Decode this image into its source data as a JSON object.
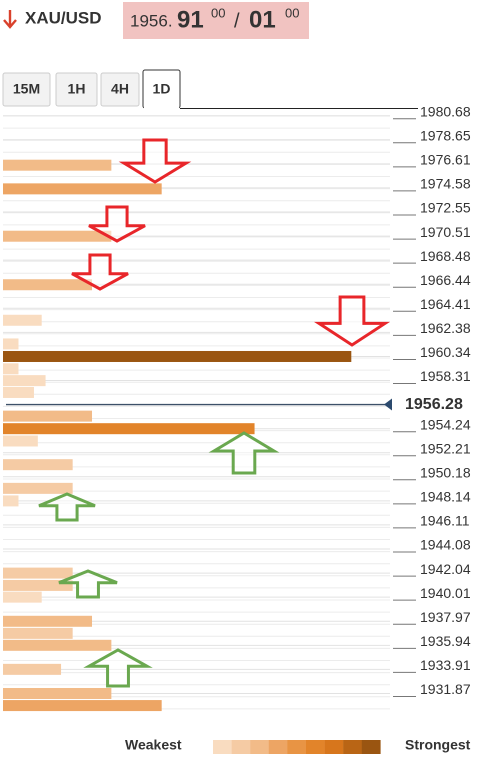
{
  "header": {
    "symbol": "XAU/USD",
    "bid_main": "1956.",
    "bid_big": "91",
    "bid_sup": "00",
    "separator": "/",
    "ask_big": "01",
    "ask_sup": "00"
  },
  "tabs": [
    "15M",
    "1H",
    "4H",
    "1D"
  ],
  "active_tab": 3,
  "chart_data": {
    "type": "confluence",
    "ylim": [
      1929.8,
      1981.5
    ],
    "yticks": [
      1980.68,
      1978.65,
      1976.61,
      1974.58,
      1972.55,
      1970.51,
      1968.48,
      1966.44,
      1964.41,
      1962.38,
      1960.34,
      1958.31,
      1954.24,
      1952.21,
      1950.18,
      1948.14,
      1946.11,
      1944.08,
      1942.04,
      1940.01,
      1937.97,
      1935.94,
      1933.91,
      1931.87
    ],
    "current_price": 1956.28,
    "bars": [
      {
        "price": 1976.5,
        "strength": 28
      },
      {
        "price": 1974.5,
        "strength": 41
      },
      {
        "price": 1970.5,
        "strength": 28
      },
      {
        "price": 1966.4,
        "strength": 23
      },
      {
        "price": 1963.4,
        "strength": 10
      },
      {
        "price": 1961.4,
        "strength": 4
      },
      {
        "price": 1960.34,
        "strength": 90
      },
      {
        "price": 1959.3,
        "strength": 4
      },
      {
        "price": 1958.3,
        "strength": 11
      },
      {
        "price": 1957.3,
        "strength": 8
      },
      {
        "price": 1955.3,
        "strength": 23
      },
      {
        "price": 1954.24,
        "strength": 65
      },
      {
        "price": 1953.2,
        "strength": 9
      },
      {
        "price": 1951.2,
        "strength": 18
      },
      {
        "price": 1949.2,
        "strength": 18
      },
      {
        "price": 1948.14,
        "strength": 4
      },
      {
        "price": 1942.04,
        "strength": 18
      },
      {
        "price": 1941.0,
        "strength": 18
      },
      {
        "price": 1940.01,
        "strength": 10
      },
      {
        "price": 1937.97,
        "strength": 23
      },
      {
        "price": 1936.95,
        "strength": 18
      },
      {
        "price": 1935.94,
        "strength": 28
      },
      {
        "price": 1933.91,
        "strength": 15
      },
      {
        "price": 1931.87,
        "strength": 28
      },
      {
        "price": 1930.85,
        "strength": 41
      }
    ],
    "xlim": [
      0,
      100
    ],
    "legend": {
      "weakest": "Weakest",
      "strongest": "Strongest",
      "colors": [
        "#f9dcc0",
        "#f5cba4",
        "#f2bb88",
        "#eda564",
        "#e89444",
        "#e2842a",
        "#d7761c",
        "#b96515",
        "#9a5511"
      ]
    }
  }
}
